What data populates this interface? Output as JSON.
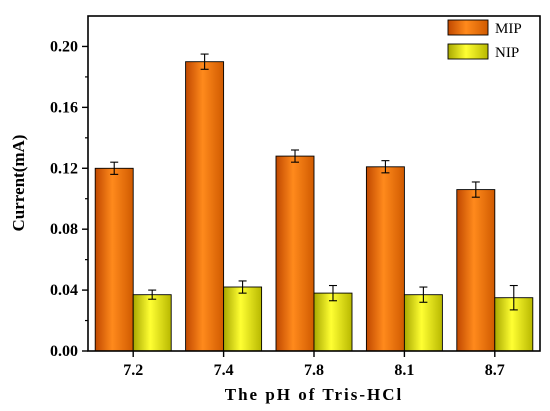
{
  "chart_data": {
    "type": "bar",
    "title": "",
    "xlabel": "The pH of Tris-HCl",
    "ylabel": "Current(mA)",
    "categories": [
      "7.2",
      "7.4",
      "7.8",
      "8.1",
      "8.7"
    ],
    "ylim": [
      0,
      0.22
    ],
    "yticks": [
      "0.00",
      "0.04",
      "0.08",
      "0.12",
      "0.16",
      "0.20"
    ],
    "ytick_values": [
      0.0,
      0.04,
      0.08,
      0.12,
      0.16,
      0.2
    ],
    "legend_position": "top-right",
    "grid": false,
    "series": [
      {
        "name": "MIP",
        "color": "#ff7f00",
        "values": [
          0.12,
          0.19,
          0.128,
          0.121,
          0.106
        ],
        "errors": [
          0.004,
          0.005,
          0.004,
          0.004,
          0.005
        ]
      },
      {
        "name": "NIP",
        "color": "#ffff00",
        "values": [
          0.037,
          0.042,
          0.038,
          0.037,
          0.035
        ],
        "errors": [
          0.003,
          0.004,
          0.005,
          0.005,
          0.008
        ]
      }
    ]
  }
}
